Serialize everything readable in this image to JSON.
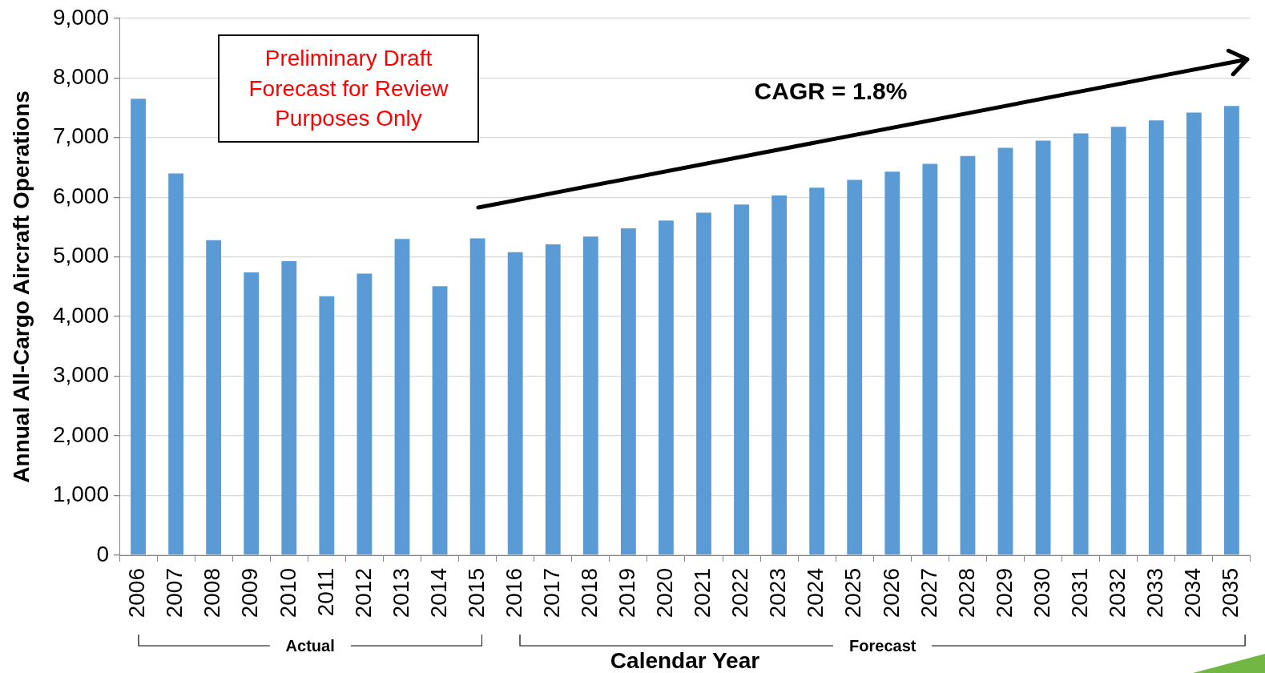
{
  "chart_data": {
    "type": "bar",
    "xlabel": "Calendar Year",
    "ylabel": "Annual All-Cargo Aircraft Operations",
    "categories": [
      "2006",
      "2007",
      "2008",
      "2009",
      "2010",
      "2011",
      "2012",
      "2013",
      "2014",
      "2015",
      "2016",
      "2017",
      "2018",
      "2019",
      "2020",
      "2021",
      "2022",
      "2023",
      "2024",
      "2025",
      "2026",
      "2027",
      "2028",
      "2029",
      "2030",
      "2031",
      "2032",
      "2033",
      "2034",
      "2035"
    ],
    "values": [
      7650,
      6400,
      5280,
      4740,
      4930,
      4340,
      4720,
      5300,
      4510,
      5310,
      5080,
      5210,
      5340,
      5480,
      5610,
      5740,
      5880,
      6030,
      6160,
      6290,
      6430,
      6560,
      6690,
      6830,
      6950,
      7070,
      7180,
      7290,
      7420,
      7530
    ],
    "color": "#5b9bd5",
    "ylim": [
      0,
      9000
    ],
    "yticks": [
      0,
      {
        "value": 1000,
        "label": "1,000"
      },
      {
        "value": 2000,
        "label": "2,000"
      },
      {
        "value": 3000,
        "label": "3,000"
      },
      {
        "value": 4000,
        "label": "4,000"
      },
      {
        "value": 5000,
        "label": "5,000"
      },
      {
        "value": 6000,
        "label": "6,000"
      },
      {
        "value": 7000,
        "label": "7,000"
      },
      {
        "value": 8000,
        "label": "8,000"
      },
      {
        "value": 9000,
        "label": "9,000"
      }
    ],
    "grid": "y",
    "annotations": [
      "Preliminary Draft Forecast for Review Purposes Only",
      "CAGR = 1.8%",
      "Actual",
      "Forecast"
    ]
  }
}
